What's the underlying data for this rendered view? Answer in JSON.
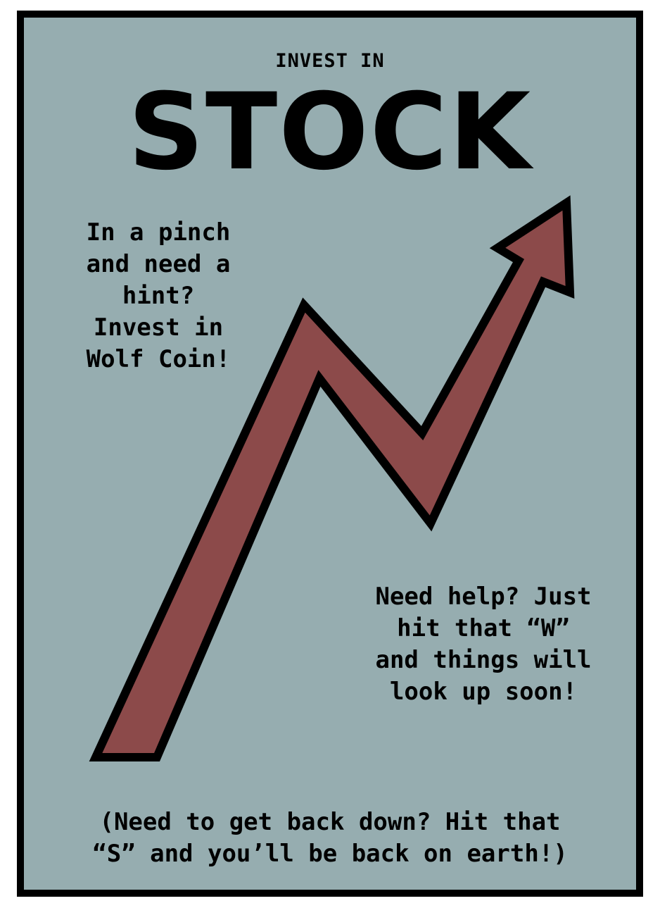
{
  "poster": {
    "kicker": "INVEST IN",
    "headline": "STOCK",
    "hint_text": "In a pinch\nand need a\nhint?\nInvest in\nWolf Coin!",
    "up_text": "Need help? Just\nhit that “W”\nand things will\nlook up soon!",
    "down_text": "(Need to get back down? Hit that\n“S” and you’ll be back on earth!)"
  },
  "colors": {
    "background": "#96adb0",
    "border": "#000000",
    "arrow_fill": "#8c4a4a",
    "text": "#000000"
  },
  "icons": {
    "arrow": "rising-zigzag-arrow-icon"
  }
}
